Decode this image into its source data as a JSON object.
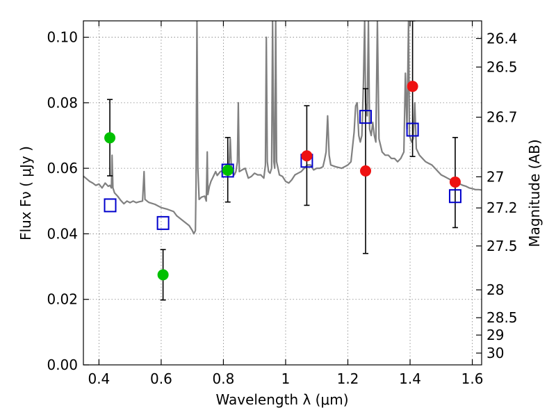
{
  "chart_data": {
    "type": "scatter",
    "xlabel": "Wavelength  λ (μm)",
    "ylabel_left": "Flux  Fν  ( μJy )",
    "ylabel_right": "Magnitude (AB)",
    "xlim": [
      0.35,
      1.63
    ],
    "ylim": [
      0.0,
      0.105
    ],
    "grid": true,
    "x_ticks": [
      {
        "value": 0.4,
        "label": "0.4"
      },
      {
        "value": 0.6,
        "label": "0.6"
      },
      {
        "value": 0.8,
        "label": "0.8"
      },
      {
        "value": 1.0,
        "label": "1"
      },
      {
        "value": 1.2,
        "label": "1.2"
      },
      {
        "value": 1.4,
        "label": "1.4"
      },
      {
        "value": 1.6,
        "label": "1.6"
      }
    ],
    "y_ticks": [
      {
        "value": 0.0,
        "label": "0.00"
      },
      {
        "value": 0.02,
        "label": "0.02"
      },
      {
        "value": 0.04,
        "label": "0.04"
      },
      {
        "value": 0.06,
        "label": "0.06"
      },
      {
        "value": 0.08,
        "label": "0.08"
      },
      {
        "value": 0.1,
        "label": "0.10"
      }
    ],
    "right_ticks": [
      {
        "flux": 0.0996,
        "label": "26.4"
      },
      {
        "flux": 0.0909,
        "label": "26.5"
      },
      {
        "flux": 0.0756,
        "label": "26.7"
      },
      {
        "flux": 0.0574,
        "label": "27"
      },
      {
        "flux": 0.0479,
        "label": "27.2"
      },
      {
        "flux": 0.0363,
        "label": "27.5"
      },
      {
        "flux": 0.0229,
        "label": "28"
      },
      {
        "flux": 0.0144,
        "label": "28.5"
      },
      {
        "flux": 0.0091,
        "label": "29"
      },
      {
        "flux": 0.0036,
        "label": "30"
      }
    ],
    "colors": {
      "model": "#808080",
      "green": "#00c000",
      "red": "#ee1111",
      "blue": "#0000cc",
      "grid": "#808080"
    },
    "series": [
      {
        "name": "green-points",
        "marker": "circle",
        "points": [
          {
            "x": 0.435,
            "y": 0.0693,
            "yerr": [
              0.0577,
              0.081
            ]
          },
          {
            "x": 0.606,
            "y": 0.0275,
            "yerr": [
              0.0198,
              0.0352
            ]
          },
          {
            "x": 0.814,
            "y": 0.0594,
            "yerr": [
              0.0497,
              0.0694
            ]
          }
        ]
      },
      {
        "name": "red-points",
        "marker": "circle",
        "points": [
          {
            "x": 1.068,
            "y": 0.0638,
            "yerr": [
              0.0487,
              0.0791
            ]
          },
          {
            "x": 1.257,
            "y": 0.0592,
            "yerr": [
              0.034,
              0.0843
            ]
          },
          {
            "x": 1.408,
            "y": 0.085,
            "yerr": [
              0.0636,
              0.105
            ]
          },
          {
            "x": 1.545,
            "y": 0.0558,
            "yerr": [
              0.0419,
              0.0694
            ]
          }
        ]
      },
      {
        "name": "model-squares",
        "marker": "square",
        "points": [
          {
            "x": 0.436,
            "y": 0.0487
          },
          {
            "x": 0.606,
            "y": 0.0433
          },
          {
            "x": 0.814,
            "y": 0.0593
          },
          {
            "x": 1.068,
            "y": 0.0623
          },
          {
            "x": 1.257,
            "y": 0.0757
          },
          {
            "x": 1.408,
            "y": 0.0718
          },
          {
            "x": 1.545,
            "y": 0.0515
          }
        ]
      }
    ],
    "model_spectrum": [
      [
        0.35,
        0.0576
      ],
      [
        0.36,
        0.0568
      ],
      [
        0.37,
        0.056
      ],
      [
        0.38,
        0.0555
      ],
      [
        0.39,
        0.0548
      ],
      [
        0.4,
        0.0552
      ],
      [
        0.41,
        0.054
      ],
      [
        0.42,
        0.0555
      ],
      [
        0.43,
        0.0545
      ],
      [
        0.435,
        0.0548
      ],
      [
        0.44,
        0.054
      ],
      [
        0.442,
        0.064
      ],
      [
        0.445,
        0.054
      ],
      [
        0.45,
        0.0525
      ],
      [
        0.46,
        0.0515
      ],
      [
        0.47,
        0.0502
      ],
      [
        0.48,
        0.0492
      ],
      [
        0.49,
        0.05
      ],
      [
        0.5,
        0.0495
      ],
      [
        0.51,
        0.05
      ],
      [
        0.52,
        0.0495
      ],
      [
        0.53,
        0.0498
      ],
      [
        0.54,
        0.05
      ],
      [
        0.545,
        0.059
      ],
      [
        0.548,
        0.0505
      ],
      [
        0.56,
        0.0496
      ],
      [
        0.58,
        0.049
      ],
      [
        0.6,
        0.048
      ],
      [
        0.62,
        0.0475
      ],
      [
        0.64,
        0.0468
      ],
      [
        0.65,
        0.0455
      ],
      [
        0.67,
        0.044
      ],
      [
        0.69,
        0.0425
      ],
      [
        0.7,
        0.041
      ],
      [
        0.705,
        0.04
      ],
      [
        0.71,
        0.041
      ],
      [
        0.712,
        0.056
      ],
      [
        0.715,
        0.105
      ],
      [
        0.718,
        0.06
      ],
      [
        0.722,
        0.0505
      ],
      [
        0.73,
        0.0512
      ],
      [
        0.74,
        0.0515
      ],
      [
        0.745,
        0.05
      ],
      [
        0.748,
        0.065
      ],
      [
        0.75,
        0.052
      ],
      [
        0.755,
        0.0545
      ],
      [
        0.76,
        0.056
      ],
      [
        0.765,
        0.057
      ],
      [
        0.77,
        0.058
      ],
      [
        0.775,
        0.059
      ],
      [
        0.78,
        0.0578
      ],
      [
        0.79,
        0.059
      ],
      [
        0.8,
        0.0593
      ],
      [
        0.81,
        0.0598
      ],
      [
        0.818,
        0.06
      ],
      [
        0.822,
        0.069
      ],
      [
        0.826,
        0.059
      ],
      [
        0.83,
        0.0585
      ],
      [
        0.835,
        0.058
      ],
      [
        0.84,
        0.059
      ],
      [
        0.845,
        0.062
      ],
      [
        0.848,
        0.08
      ],
      [
        0.851,
        0.059
      ],
      [
        0.86,
        0.0595
      ],
      [
        0.87,
        0.06
      ],
      [
        0.88,
        0.057
      ],
      [
        0.89,
        0.0575
      ],
      [
        0.9,
        0.0585
      ],
      [
        0.91,
        0.058
      ],
      [
        0.92,
        0.058
      ],
      [
        0.93,
        0.057
      ],
      [
        0.935,
        0.061
      ],
      [
        0.938,
        0.1
      ],
      [
        0.941,
        0.062
      ],
      [
        0.945,
        0.059
      ],
      [
        0.95,
        0.0585
      ],
      [
        0.955,
        0.06
      ],
      [
        0.958,
        0.105
      ],
      [
        0.962,
        0.062
      ],
      [
        0.965,
        0.06
      ],
      [
        0.968,
        0.105
      ],
      [
        0.971,
        0.062
      ],
      [
        0.98,
        0.058
      ],
      [
        0.99,
        0.0575
      ],
      [
        1.0,
        0.056
      ],
      [
        1.01,
        0.0555
      ],
      [
        1.02,
        0.0565
      ],
      [
        1.03,
        0.058
      ],
      [
        1.04,
        0.0585
      ],
      [
        1.05,
        0.059
      ],
      [
        1.06,
        0.06
      ],
      [
        1.07,
        0.061
      ],
      [
        1.08,
        0.061
      ],
      [
        1.09,
        0.0595
      ],
      [
        1.1,
        0.06
      ],
      [
        1.11,
        0.06
      ],
      [
        1.12,
        0.0605
      ],
      [
        1.125,
        0.0625
      ],
      [
        1.13,
        0.065
      ],
      [
        1.135,
        0.076
      ],
      [
        1.14,
        0.064
      ],
      [
        1.145,
        0.061
      ],
      [
        1.16,
        0.0605
      ],
      [
        1.18,
        0.06
      ],
      [
        1.19,
        0.0605
      ],
      [
        1.2,
        0.061
      ],
      [
        1.21,
        0.062
      ],
      [
        1.22,
        0.071
      ],
      [
        1.225,
        0.079
      ],
      [
        1.23,
        0.08
      ],
      [
        1.235,
        0.07
      ],
      [
        1.24,
        0.068
      ],
      [
        1.245,
        0.07
      ],
      [
        1.25,
        0.086
      ],
      [
        1.254,
        0.105
      ],
      [
        1.257,
        0.08
      ],
      [
        1.262,
        0.076
      ],
      [
        1.266,
        0.105
      ],
      [
        1.27,
        0.072
      ],
      [
        1.275,
        0.07
      ],
      [
        1.28,
        0.074
      ],
      [
        1.285,
        0.07
      ],
      [
        1.29,
        0.068
      ],
      [
        1.295,
        0.105
      ],
      [
        1.3,
        0.069
      ],
      [
        1.31,
        0.065
      ],
      [
        1.32,
        0.064
      ],
      [
        1.33,
        0.064
      ],
      [
        1.34,
        0.063
      ],
      [
        1.35,
        0.063
      ],
      [
        1.36,
        0.062
      ],
      [
        1.37,
        0.063
      ],
      [
        1.38,
        0.065
      ],
      [
        1.385,
        0.089
      ],
      [
        1.39,
        0.072
      ],
      [
        1.395,
        0.105
      ],
      [
        1.398,
        0.07
      ],
      [
        1.405,
        0.068
      ],
      [
        1.41,
        0.069
      ],
      [
        1.415,
        0.08
      ],
      [
        1.42,
        0.066
      ],
      [
        1.43,
        0.064
      ],
      [
        1.44,
        0.063
      ],
      [
        1.45,
        0.062
      ],
      [
        1.46,
        0.0615
      ],
      [
        1.47,
        0.061
      ],
      [
        1.48,
        0.06
      ],
      [
        1.49,
        0.059
      ],
      [
        1.5,
        0.058
      ],
      [
        1.51,
        0.0575
      ],
      [
        1.52,
        0.057
      ],
      [
        1.53,
        0.0565
      ],
      [
        1.54,
        0.056
      ],
      [
        1.55,
        0.0555
      ],
      [
        1.56,
        0.0552
      ],
      [
        1.57,
        0.0548
      ],
      [
        1.58,
        0.0545
      ],
      [
        1.59,
        0.054
      ],
      [
        1.6,
        0.0538
      ],
      [
        1.61,
        0.0535
      ],
      [
        1.62,
        0.0535
      ],
      [
        1.63,
        0.0534
      ]
    ]
  }
}
